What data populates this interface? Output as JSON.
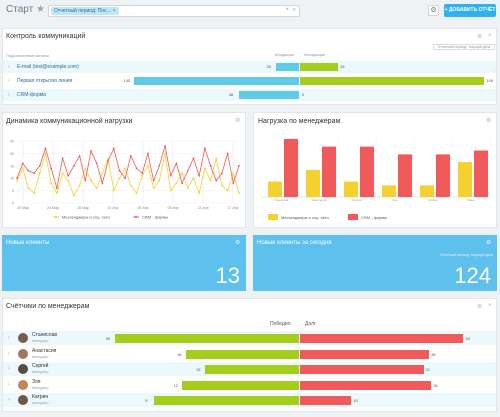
{
  "header": {
    "title": "Старт",
    "search_chip": "Отчетный период: Пос...",
    "add_button": "+ ДОБАВИТЬ ОТЧЁТ"
  },
  "communications": {
    "title": "Контроль коммуникаций",
    "col_label": "Подключенные каналы",
    "col_win": "Входящие",
    "col_fail": "Исходящие",
    "period_btn": "Отчетный период: текущий день",
    "rows": [
      {
        "label": "E-mail (test@example.com)",
        "in": 25,
        "out": 15,
        "in_frac": 0.12,
        "out_frac": 0.2
      },
      {
        "label": "Первая открытая линия",
        "in": 140,
        "out": 149,
        "in_frac": 0.88,
        "out_frac": 0.97
      },
      {
        "label": "CRM-форма",
        "in": 46,
        "out": 0,
        "in_frac": 0.32,
        "out_frac": 0.0
      }
    ]
  },
  "dynamics": {
    "title": "Динамика коммуникационной нагрузки",
    "chart_data": {
      "type": "line",
      "y_ticks": [
        "25",
        "20",
        "15",
        "10",
        "5",
        "0"
      ],
      "x_ticks": [
        "20 Мар",
        "24 Мар",
        "28 Мар",
        "01 Апр",
        "05 Апр",
        "09 Апр",
        "13 Апр",
        "17 Апр"
      ],
      "ylim": [
        0,
        25
      ],
      "series": [
        {
          "name": "Мессенджеры и соц. сети",
          "color": "#f5d130",
          "values": [
            9,
            14,
            6,
            4,
            12,
            20,
            8,
            4,
            12,
            9,
            3,
            7,
            14,
            9,
            6,
            12,
            18,
            5,
            10,
            14,
            7,
            4,
            11,
            15,
            6,
            9,
            20,
            5,
            8,
            12,
            6,
            10,
            4,
            14,
            9,
            18,
            7,
            5,
            12,
            4
          ]
        },
        {
          "name": "CRM - формы",
          "color": "#f05a5a",
          "values": [
            10,
            16,
            13,
            12,
            15,
            22,
            14,
            6,
            18,
            11,
            15,
            19,
            9,
            21,
            16,
            8,
            17,
            22,
            13,
            10,
            19,
            14,
            12,
            20,
            9,
            15,
            23,
            11,
            16,
            8,
            13,
            18,
            11,
            22,
            15,
            9,
            12,
            20,
            8,
            15
          ]
        }
      ]
    }
  },
  "managers_load": {
    "title": "Нагрузка по менеджерам",
    "chart_data": {
      "type": "bar",
      "categories": [
        "Станислав",
        "Анастасия",
        "Сергей",
        "Зоя",
        "Катрин",
        "Павел"
      ],
      "ylim": [
        0,
        16
      ],
      "series": [
        {
          "name": "Мессенджеры и соц. сети",
          "color": "#f5d130",
          "values": [
            4,
            7,
            4,
            3,
            3,
            9
          ]
        },
        {
          "name": "CRM - формы",
          "color": "#f05a5a",
          "values": [
            15,
            13,
            13,
            11,
            11,
            12
          ]
        }
      ]
    }
  },
  "tiles": [
    {
      "title": "Новые клиенты",
      "value": "13",
      "note": ""
    },
    {
      "title": "Новые клиенты за сегодня",
      "value": "124",
      "note": "Отчетный период: текущий день"
    }
  ],
  "counters": {
    "title": "Счётчики по менеджерам",
    "col_win": "Победил.",
    "col_debt": "Долг",
    "rows": [
      {
        "name": "Станислав",
        "role": "менеджер",
        "win": 39,
        "debt": 34,
        "win_frac": 0.98,
        "debt_frac": 0.86
      },
      {
        "name": "Анастасия",
        "role": "менеджер",
        "win": 16,
        "debt": 35,
        "win_frac": 0.6,
        "debt_frac": 0.68
      },
      {
        "name": "Сергей",
        "role": "менеджер",
        "win": 15,
        "debt": 21,
        "win_frac": 0.5,
        "debt_frac": 0.65
      },
      {
        "name": "Зоя",
        "role": "менеджер",
        "win": 12,
        "debt": 18,
        "win_frac": 0.62,
        "debt_frac": 0.69
      },
      {
        "name": "Катрин",
        "role": "менеджер",
        "win": 9,
        "debt": 10,
        "win_frac": 0.77,
        "debt_frac": 0.27
      }
    ]
  }
}
